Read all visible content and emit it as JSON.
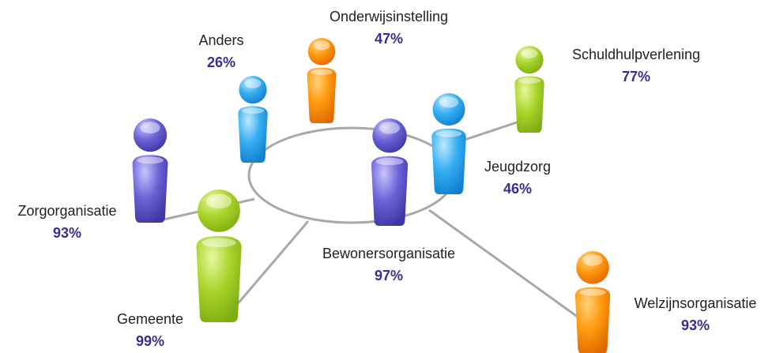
{
  "nodes": [
    {
      "label": "Onderwijsinstelling",
      "value": "47%"
    },
    {
      "label": "Anders",
      "value": "26%"
    },
    {
      "label": "Schuldhulpverlening",
      "value": "77%"
    },
    {
      "label": "Zorgorganisatie",
      "value": "93%"
    },
    {
      "label": "Jeugdzorg",
      "value": "46%"
    },
    {
      "label": "Bewonersorganisatie",
      "value": "97%"
    },
    {
      "label": "Gemeente",
      "value": "99%"
    },
    {
      "label": "Welzijnsorganisatie",
      "value": "93%"
    }
  ]
}
